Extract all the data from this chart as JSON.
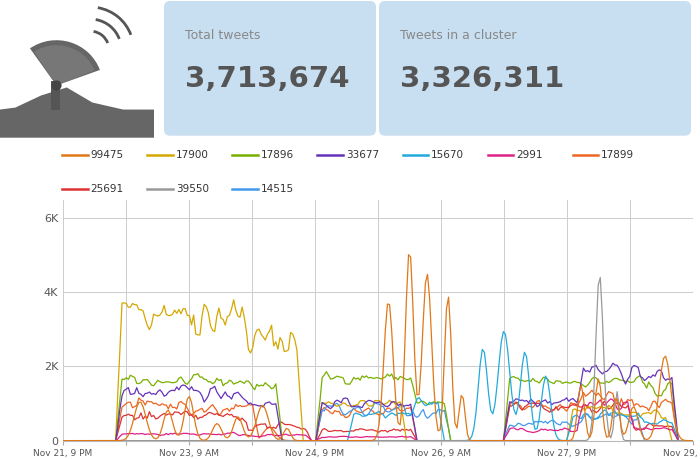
{
  "total_tweets": "3,713,674",
  "cluster_tweets": "3,326,311",
  "series": {
    "99475": {
      "color": "#e07818",
      "zorder": 5
    },
    "17900": {
      "color": "#d4a800",
      "zorder": 4
    },
    "17896": {
      "color": "#78b000",
      "zorder": 4
    },
    "33677": {
      "color": "#6633bb",
      "zorder": 4
    },
    "15670": {
      "color": "#22aadd",
      "zorder": 4
    },
    "2991": {
      "color": "#dd2288",
      "zorder": 4
    },
    "17899": {
      "color": "#ee6622",
      "zorder": 3
    },
    "25691": {
      "color": "#dd3333",
      "zorder": 3
    },
    "39550": {
      "color": "#999999",
      "zorder": 4
    },
    "14515": {
      "color": "#4499ee",
      "zorder": 3
    }
  },
  "ylim": [
    0,
    6500
  ],
  "yticks": [
    0,
    2000,
    4000,
    6000
  ],
  "ytick_labels": [
    "0",
    "2K",
    "4K",
    "6K"
  ],
  "bg_color": "#ffffff",
  "grid_color": "#cccccc",
  "header_bg": "#c8dff2",
  "n_points": 300,
  "legend_row1": [
    [
      "99475",
      "#e07818"
    ],
    [
      "17900",
      "#d4a800"
    ],
    [
      "17896",
      "#78b000"
    ],
    [
      "33677",
      "#6633bb"
    ],
    [
      "15670",
      "#22aadd"
    ],
    [
      "2991",
      "#dd2288"
    ],
    [
      "17899",
      "#ee6622"
    ]
  ],
  "legend_row2": [
    [
      "25691",
      "#dd3333"
    ],
    [
      "39550",
      "#999999"
    ],
    [
      "14515",
      "#4499ee"
    ]
  ]
}
